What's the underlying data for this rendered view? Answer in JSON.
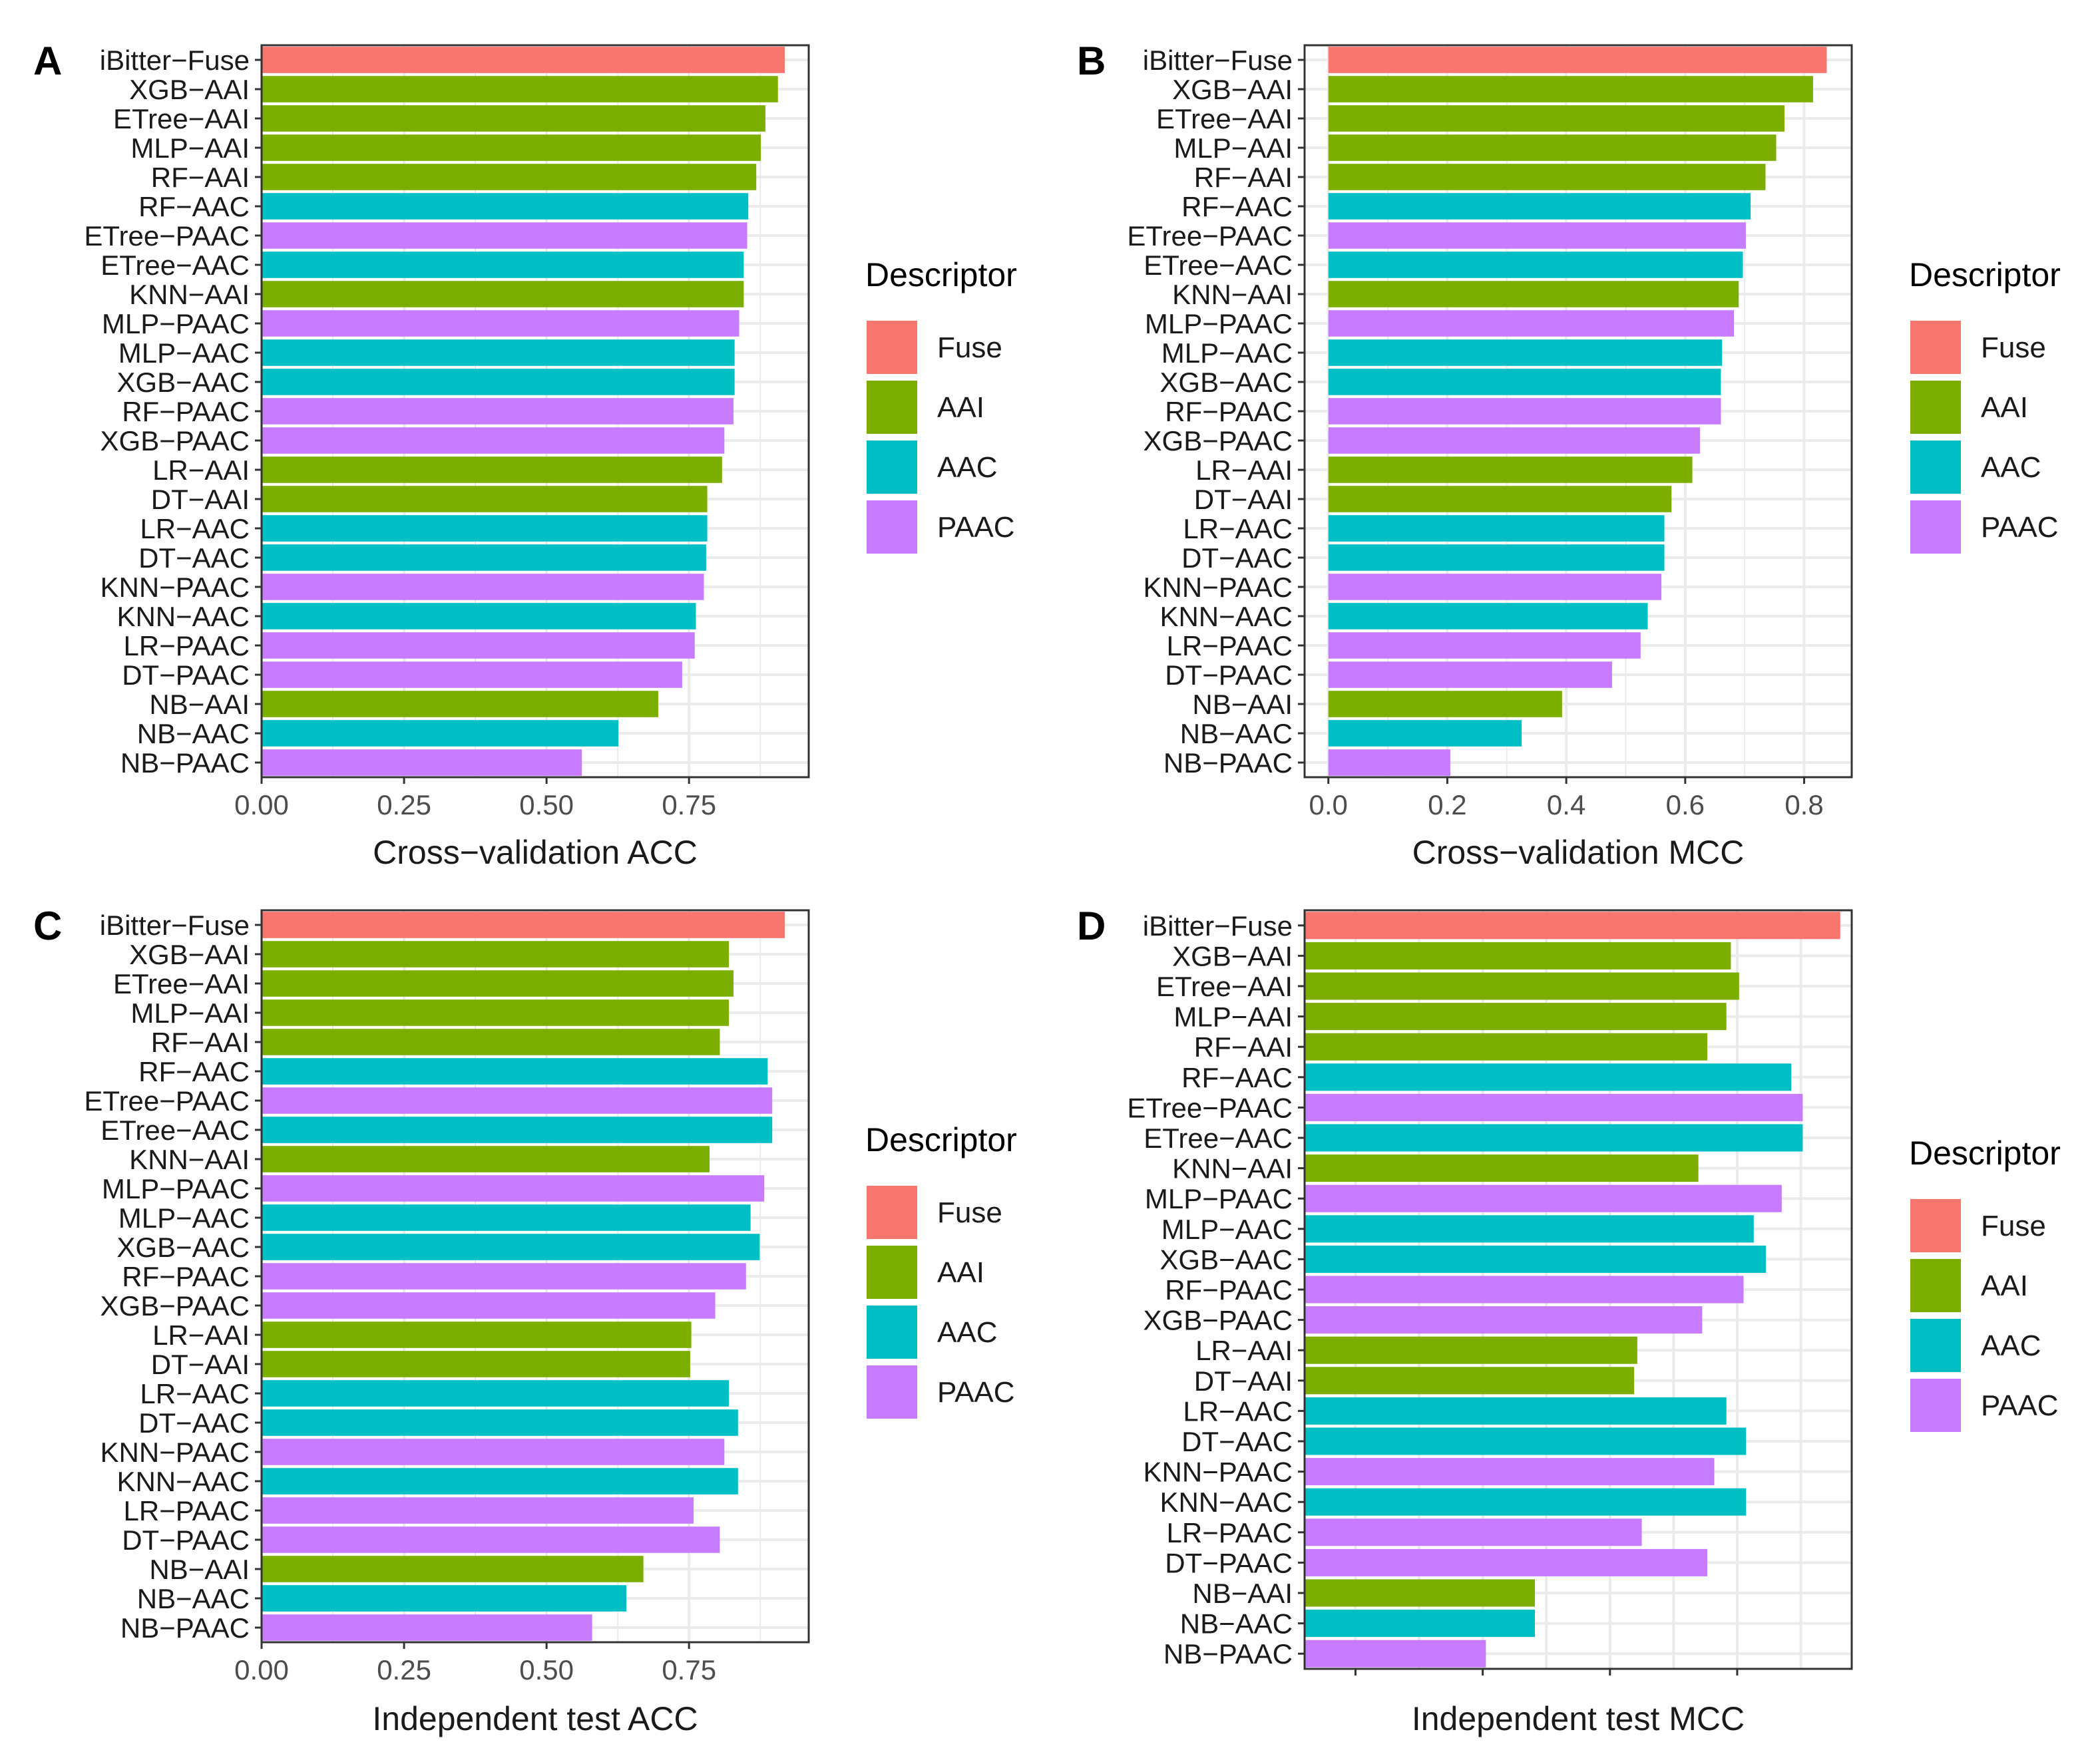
{
  "legend": {
    "title": "Descriptor",
    "items": [
      {
        "name": "Fuse",
        "color": "#F8766D"
      },
      {
        "name": "AAI",
        "color": "#7CAE00"
      },
      {
        "name": "AAC",
        "color": "#00BFC4"
      },
      {
        "name": "PAAC",
        "color": "#C77CFF"
      }
    ]
  },
  "chart_data": [
    {
      "type": "bar",
      "panel": "A",
      "orientation": "horizontal",
      "xlabel": "Cross−validation ACC",
      "xlim": [
        0,
        0.96
      ],
      "xticks": [
        0,
        0.25,
        0.5,
        0.75
      ],
      "xtick_labels": [
        "0.00",
        "0.25",
        "0.50",
        "0.75"
      ],
      "grid": true,
      "legend_position": "right",
      "categories": [
        "iBitter−Fuse",
        "XGB−AAI",
        "ETree−AAI",
        "MLP−AAI",
        "RF−AAI",
        "RF−AAC",
        "ETree−PAAC",
        "ETree−AAC",
        "KNN−AAI",
        "MLP−PAAC",
        "MLP−AAC",
        "XGB−AAC",
        "RF−PAAC",
        "XGB−PAAC",
        "LR−AAI",
        "DT−AAI",
        "LR−AAC",
        "DT−AAC",
        "KNN−PAAC",
        "KNN−AAC",
        "LR−PAAC",
        "DT−PAAC",
        "NB−AAI",
        "NB−AAC",
        "NB−PAAC"
      ],
      "descriptors": [
        "Fuse",
        "AAI",
        "AAI",
        "AAI",
        "AAI",
        "AAC",
        "PAAC",
        "AAC",
        "AAI",
        "PAAC",
        "AAC",
        "AAC",
        "PAAC",
        "PAAC",
        "AAI",
        "AAI",
        "AAC",
        "AAC",
        "PAAC",
        "AAC",
        "PAAC",
        "PAAC",
        "AAI",
        "AAC",
        "PAAC"
      ],
      "values": [
        0.918,
        0.906,
        0.884,
        0.876,
        0.868,
        0.854,
        0.852,
        0.846,
        0.846,
        0.838,
        0.83,
        0.83,
        0.828,
        0.812,
        0.808,
        0.782,
        0.782,
        0.78,
        0.776,
        0.762,
        0.76,
        0.738,
        0.696,
        0.626,
        0.562
      ]
    },
    {
      "type": "bar",
      "panel": "B",
      "orientation": "horizontal",
      "xlabel": "Cross−validation MCC",
      "xlim": [
        -0.04,
        0.88
      ],
      "xticks": [
        0,
        0.2,
        0.4,
        0.6,
        0.8
      ],
      "xtick_labels": [
        "0.0",
        "0.2",
        "0.4",
        "0.6",
        "0.8"
      ],
      "grid": true,
      "legend_position": "right",
      "categories": [
        "iBitter−Fuse",
        "XGB−AAI",
        "ETree−AAI",
        "MLP−AAI",
        "RF−AAI",
        "RF−AAC",
        "ETree−PAAC",
        "ETree−AAC",
        "KNN−AAI",
        "MLP−PAAC",
        "MLP−AAC",
        "XGB−AAC",
        "RF−PAAC",
        "XGB−PAAC",
        "LR−AAI",
        "DT−AAI",
        "LR−AAC",
        "DT−AAC",
        "KNN−PAAC",
        "KNN−AAC",
        "LR−PAAC",
        "DT−PAAC",
        "NB−AAI",
        "NB−AAC",
        "NB−PAAC"
      ],
      "descriptors": [
        "Fuse",
        "AAI",
        "AAI",
        "AAI",
        "AAI",
        "AAC",
        "PAAC",
        "AAC",
        "AAI",
        "PAAC",
        "AAC",
        "AAC",
        "PAAC",
        "PAAC",
        "AAI",
        "AAI",
        "AAC",
        "AAC",
        "PAAC",
        "AAC",
        "PAAC",
        "PAAC",
        "AAI",
        "AAC",
        "PAAC"
      ],
      "values": [
        0.838,
        0.815,
        0.767,
        0.753,
        0.735,
        0.71,
        0.702,
        0.697,
        0.69,
        0.682,
        0.662,
        0.66,
        0.66,
        0.625,
        0.612,
        0.577,
        0.565,
        0.565,
        0.56,
        0.537,
        0.525,
        0.477,
        0.393,
        0.325,
        0.205
      ]
    },
    {
      "type": "bar",
      "panel": "C",
      "orientation": "horizontal",
      "xlabel": "Independent test ACC",
      "xlim": [
        0,
        0.96
      ],
      "xticks": [
        0,
        0.25,
        0.5,
        0.75
      ],
      "xtick_labels": [
        "0.00",
        "0.25",
        "0.50",
        "0.75"
      ],
      "grid": true,
      "legend_position": "right",
      "categories": [
        "iBitter−Fuse",
        "XGB−AAI",
        "ETree−AAI",
        "MLP−AAI",
        "RF−AAI",
        "RF−AAC",
        "ETree−PAAC",
        "ETree−AAC",
        "KNN−AAI",
        "MLP−PAAC",
        "MLP−AAC",
        "XGB−AAC",
        "RF−PAAC",
        "XGB−PAAC",
        "LR−AAI",
        "DT−AAI",
        "LR−AAC",
        "DT−AAC",
        "KNN−PAAC",
        "KNN−AAC",
        "LR−PAAC",
        "DT−PAAC",
        "NB−AAI",
        "NB−AAC",
        "NB−PAAC"
      ],
      "descriptors": [
        "Fuse",
        "AAI",
        "AAI",
        "AAI",
        "AAI",
        "AAC",
        "PAAC",
        "AAC",
        "AAI",
        "PAAC",
        "AAC",
        "AAC",
        "PAAC",
        "PAAC",
        "AAI",
        "AAI",
        "AAC",
        "AAC",
        "PAAC",
        "AAC",
        "PAAC",
        "PAAC",
        "AAI",
        "AAC",
        "PAAC"
      ],
      "values": [
        0.918,
        0.82,
        0.828,
        0.82,
        0.804,
        0.888,
        0.896,
        0.896,
        0.786,
        0.882,
        0.858,
        0.874,
        0.85,
        0.796,
        0.754,
        0.752,
        0.82,
        0.836,
        0.812,
        0.836,
        0.758,
        0.804,
        0.67,
        0.64,
        0.58
      ]
    },
    {
      "type": "bar",
      "panel": "D",
      "orientation": "horizontal",
      "xlabel": "Independent test MCC",
      "xlim": [
        0.02,
        0.88
      ],
      "xticks": [],
      "xtick_labels": [],
      "grid": true,
      "legend_position": "right",
      "categories": [
        "iBitter−Fuse",
        "XGB−AAI",
        "ETree−AAI",
        "MLP−AAI",
        "RF−AAI",
        "RF−AAC",
        "ETree−PAAC",
        "ETree−AAC",
        "KNN−AAI",
        "MLP−PAAC",
        "MLP−AAC",
        "XGB−AAC",
        "RF−PAAC",
        "XGB−PAAC",
        "LR−AAI",
        "DT−AAI",
        "LR−AAC",
        "DT−AAC",
        "KNN−PAAC",
        "KNN−AAC",
        "LR−PAAC",
        "DT−PAAC",
        "NB−AAI",
        "NB−AAC",
        "NB−PAAC"
      ],
      "descriptors": [
        "Fuse",
        "AAI",
        "AAI",
        "AAI",
        "AAI",
        "AAC",
        "PAAC",
        "AAC",
        "AAI",
        "PAAC",
        "AAC",
        "AAC",
        "PAAC",
        "PAAC",
        "AAI",
        "AAI",
        "AAC",
        "AAC",
        "PAAC",
        "AAC",
        "PAAC",
        "PAAC",
        "AAI",
        "AAC",
        "PAAC"
      ],
      "values": [
        0.862,
        0.69,
        0.703,
        0.683,
        0.653,
        0.785,
        0.803,
        0.803,
        0.639,
        0.77,
        0.726,
        0.745,
        0.71,
        0.645,
        0.543,
        0.538,
        0.683,
        0.714,
        0.664,
        0.714,
        0.55,
        0.653,
        0.382,
        0.382,
        0.305
      ]
    }
  ]
}
